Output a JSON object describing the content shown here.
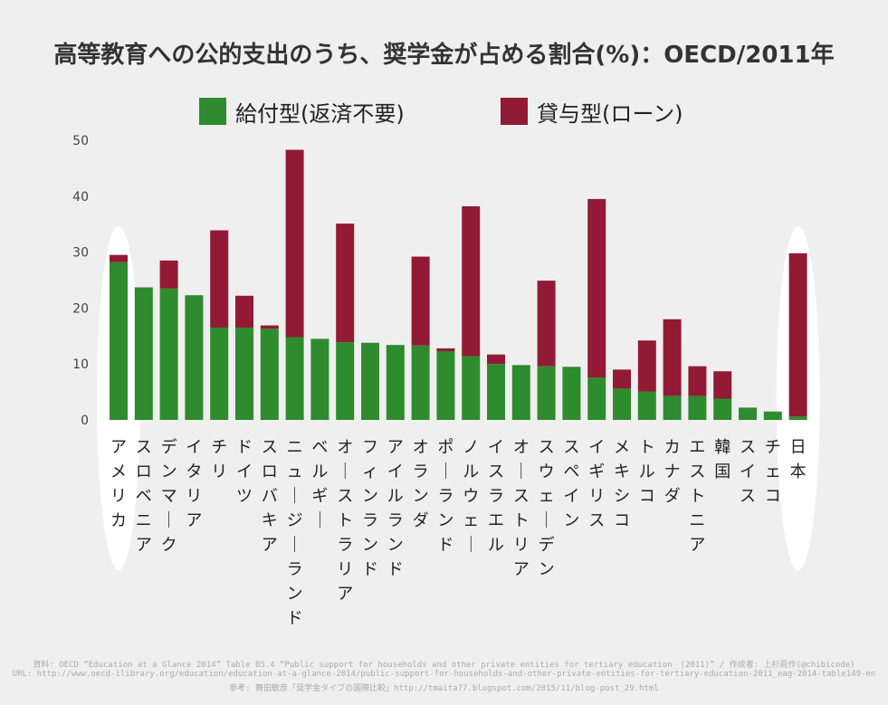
{
  "chart_data": {
    "type": "bar",
    "stacked": true,
    "title": "高等教育への公的支出のうち、奨学金が占める割合(%)：OECD/2011年",
    "xlabel": "",
    "ylabel": "",
    "ylim": [
      0,
      50
    ],
    "yticks": [
      0,
      10,
      20,
      30,
      40,
      50
    ],
    "grid": false,
    "legend_position": "top",
    "categories": [
      "アメリカ",
      "スロベニア",
      "デンマーク",
      "イタリア",
      "チリ",
      "ドイツ",
      "スロバキア",
      "ニュージーランド",
      "ベルギー",
      "オーストラリア",
      "フィンランド",
      "アイルランド",
      "オランダ",
      "ポーランド",
      "ノルウェー",
      "イスラエル",
      "オーストリア",
      "スウェーデン",
      "スペイン",
      "イギリス",
      "メキシコ",
      "トルコ",
      "カナダ",
      "エストニア",
      "韓国",
      "スイス",
      "チェコ",
      "日本"
    ],
    "series": [
      {
        "name": "給付型(返済不要)",
        "color": "#2e8b2e",
        "values": [
          28.2,
          23.7,
          23.5,
          22.3,
          16.5,
          16.5,
          16.3,
          14.8,
          14.5,
          13.9,
          13.8,
          13.4,
          13.3,
          12.3,
          11.4,
          10.0,
          9.8,
          9.6,
          9.5,
          7.6,
          5.6,
          5.1,
          4.3,
          4.3,
          3.8,
          2.2,
          1.5,
          0.6
        ]
      },
      {
        "name": "貸与型(ローン)",
        "color": "#921a35",
        "values": [
          1.3,
          0.0,
          5.0,
          0.0,
          17.4,
          5.7,
          0.6,
          33.5,
          0.0,
          21.2,
          0.0,
          0.0,
          15.9,
          0.5,
          26.8,
          1.7,
          0.0,
          15.3,
          0.0,
          31.9,
          3.4,
          9.1,
          13.7,
          5.3,
          4.9,
          0.0,
          0.0,
          29.2
        ]
      }
    ],
    "highlighted": [
      "アメリカ",
      "日本"
    ]
  },
  "footnotes": [
    "資料: OECD “Education at a Glance 2014” Table B5.4 “Public support for households and other private entities for tertiary education　(2011)” / 作成者: 上杉周作(@chibicode)",
    "URL: http://www.oecd-ilibrary.org/education/education-at-a-glance-2014/public-support-for-households-and-other-private-entities-for-tertiary-education-2011_eag-2014-table149-en",
    "参考: 舞田敏彦「奨学金タイプの国際比較」http://tmaita77.blogspot.com/2015/11/blog-post_29.html"
  ]
}
